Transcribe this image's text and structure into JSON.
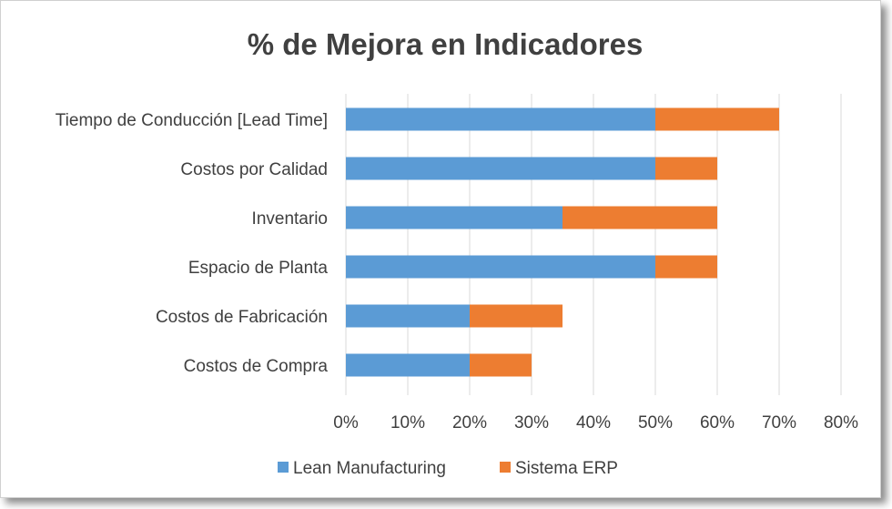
{
  "chart_data": {
    "type": "bar",
    "orientation": "horizontal",
    "stacked": true,
    "title": "% de Mejora en Indicadores",
    "categories": [
      "Tiempo de Conducción [Lead Time]",
      "Costos por Calidad",
      "Inventario",
      "Espacio de Planta",
      "Costos de Fabricación",
      "Costos de Compra"
    ],
    "series": [
      {
        "name": "Lean Manufacturing",
        "color": "#5B9BD5",
        "values": [
          50,
          50,
          35,
          50,
          20,
          20
        ]
      },
      {
        "name": "Sistema ERP",
        "color": "#ED7D31",
        "values": [
          20,
          10,
          25,
          10,
          15,
          10
        ]
      }
    ],
    "xlim": [
      0,
      80
    ],
    "x_ticks": [
      "0%",
      "10%",
      "20%",
      "30%",
      "40%",
      "50%",
      "60%",
      "70%",
      "80%"
    ],
    "grid": true,
    "legend": "bottom"
  }
}
